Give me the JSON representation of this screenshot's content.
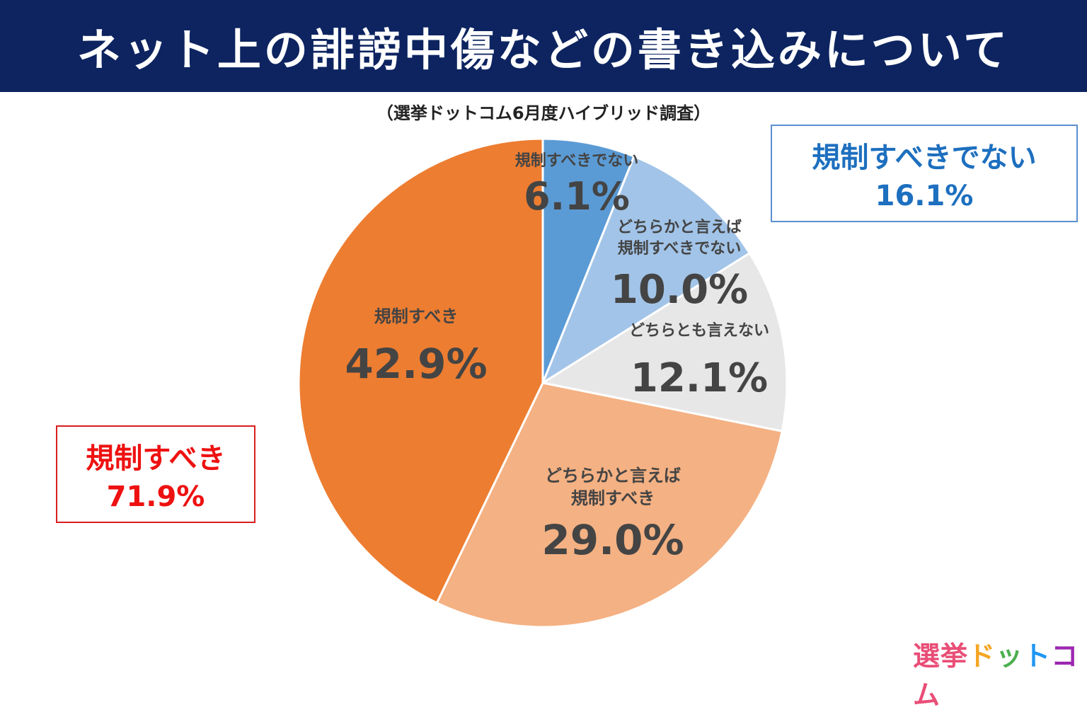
{
  "header": {
    "title": "ネット上の誹謗中傷などの書き込みについて",
    "subtitle": "（選挙ドットコム6月度ハイブリッド調査）"
  },
  "chart_data": {
    "type": "pie",
    "slices": [
      {
        "label_lines": [
          "規制すべきでない"
        ],
        "value": 6.1,
        "value_text": "6.1%",
        "color": "#5b9bd5"
      },
      {
        "label_lines": [
          "どちらかと言えば",
          "規制すべきでない"
        ],
        "value": 10.0,
        "value_text": "10.0%",
        "color": "#a2c4e8"
      },
      {
        "label_lines": [
          "どちらとも言えない"
        ],
        "value": 12.1,
        "value_text": "12.1%",
        "color": "#e7e7e7"
      },
      {
        "label_lines": [
          "どちらかと言えば",
          "規制すべき"
        ],
        "value": 29.0,
        "value_text": "29.0%",
        "color": "#f4b183"
      },
      {
        "label_lines": [
          "規制すべき"
        ],
        "value": 42.9,
        "value_text": "42.9%",
        "color": "#ed7d31"
      }
    ]
  },
  "summary_not_regulate": {
    "label": "規制すべきでない",
    "value": "16.1%",
    "color": "#1d6fbf"
  },
  "summary_regulate": {
    "label": "規制すべき",
    "value": "71.9%",
    "color": "#ee1111"
  },
  "logo": {
    "chars": [
      "選",
      "挙",
      "ド",
      "ッ",
      "ト",
      "コ",
      "ム"
    ],
    "colors": [
      "#e94e77",
      "#e94e77",
      "#f5a623",
      "#4caf50",
      "#2196f3",
      "#9c27b0",
      "#e94e77"
    ]
  }
}
